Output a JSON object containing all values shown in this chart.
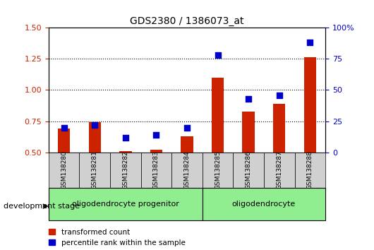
{
  "title": "GDS2380 / 1386073_at",
  "samples": [
    "GSM138280",
    "GSM138281",
    "GSM138282",
    "GSM138283",
    "GSM138284",
    "GSM138285",
    "GSM138286",
    "GSM138287",
    "GSM138288"
  ],
  "transformed_count": [
    0.69,
    0.74,
    0.51,
    0.52,
    0.63,
    1.1,
    0.83,
    0.89,
    1.26
  ],
  "percentile_rank": [
    20,
    22,
    12,
    14,
    20,
    78,
    43,
    46,
    88
  ],
  "ylim_left": [
    0.5,
    1.5
  ],
  "ylim_right": [
    0,
    100
  ],
  "yticks_left": [
    0.5,
    0.75,
    1.0,
    1.25,
    1.5
  ],
  "yticks_right": [
    0,
    25,
    50,
    75,
    100
  ],
  "ytick_labels_right": [
    "0",
    "25",
    "50",
    "75",
    "100%"
  ],
  "grid_values": [
    0.75,
    1.0,
    1.25
  ],
  "bar_color": "#cc2200",
  "dot_color": "#0000cc",
  "groups": [
    {
      "label": "oligodendrocyte progenitor",
      "start": 0,
      "end": 5,
      "color": "#90ee90"
    },
    {
      "label": "oligodendrocyte",
      "start": 5,
      "end": 9,
      "color": "#90ee90"
    }
  ],
  "tick_label_color_left": "#cc2200",
  "tick_label_color_right": "#0000cc",
  "legend_items": [
    {
      "label": "transformed count",
      "color": "#cc2200"
    },
    {
      "label": "percentile rank within the sample",
      "color": "#0000cc"
    }
  ],
  "development_stage_label": "development stage",
  "bar_width": 0.4,
  "dot_size": 35,
  "tickbox_color": "#d0d0d0"
}
